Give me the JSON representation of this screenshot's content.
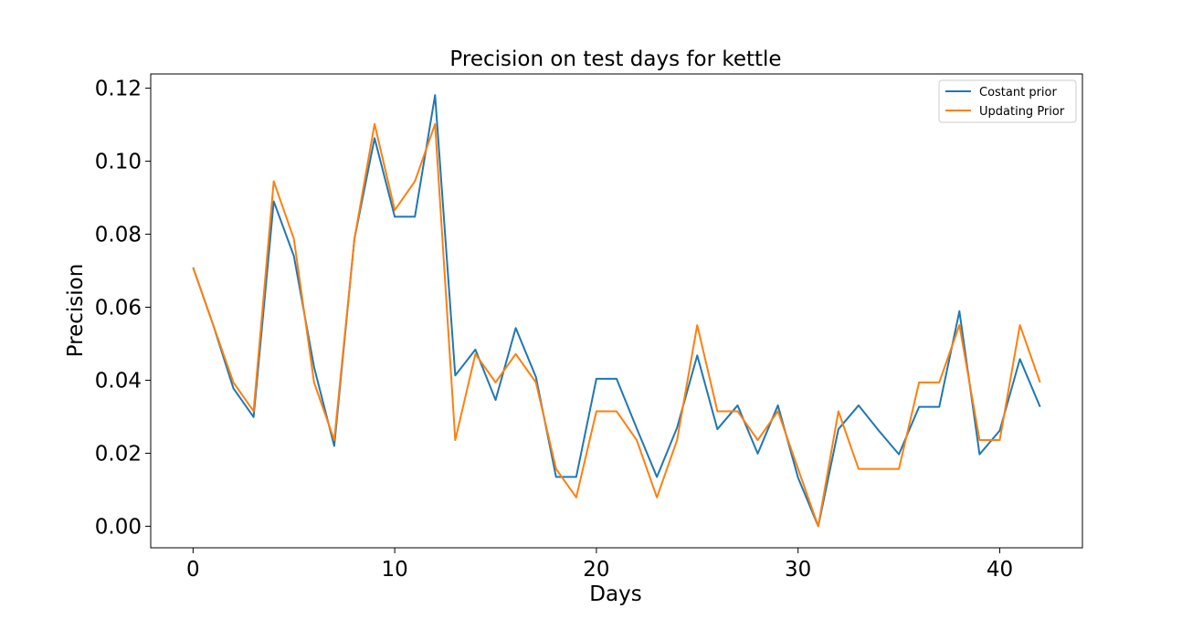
{
  "chart_data": {
    "type": "line",
    "title": "Precision on test days for kettle",
    "xlabel": "Days",
    "ylabel": "Precision",
    "xlim": [
      -2.1,
      44.1
    ],
    "ylim": [
      -0.0059,
      0.1239
    ],
    "xticks": [
      0,
      10,
      20,
      30,
      40
    ],
    "xtick_labels": [
      "0",
      "10",
      "20",
      "30",
      "40"
    ],
    "yticks": [
      0.0,
      0.02,
      0.04,
      0.06,
      0.08,
      0.1,
      0.12
    ],
    "ytick_labels": [
      "0.00",
      "0.02",
      "0.04",
      "0.06",
      "0.08",
      "0.10",
      "0.12"
    ],
    "grid": false,
    "legend_position": "top-right",
    "x": [
      0,
      1,
      2,
      3,
      4,
      5,
      6,
      7,
      8,
      9,
      10,
      11,
      12,
      13,
      14,
      15,
      16,
      17,
      18,
      19,
      20,
      21,
      22,
      23,
      24,
      25,
      26,
      27,
      28,
      29,
      30,
      31,
      32,
      33,
      34,
      35,
      36,
      37,
      38,
      39,
      40,
      41,
      42
    ],
    "series": [
      {
        "name": "Costant prior",
        "color": "#1f77b4",
        "values": [
          0.0709,
          0.0551,
          0.0378,
          0.0299,
          0.089,
          0.074,
          0.0436,
          0.022,
          0.0787,
          0.1063,
          0.0848,
          0.0848,
          0.1181,
          0.0413,
          0.0484,
          0.0346,
          0.0543,
          0.0409,
          0.0135,
          0.0135,
          0.0404,
          0.0404,
          0.0268,
          0.0135,
          0.027,
          0.0468,
          0.0266,
          0.0331,
          0.0199,
          0.0331,
          0.0133,
          0.0,
          0.0266,
          0.0331,
          0.0262,
          0.0197,
          0.0327,
          0.0327,
          0.0589,
          0.0197,
          0.0262,
          0.0458,
          0.0327
        ]
      },
      {
        "name": "Updating Prior",
        "color": "#ff7f0e",
        "values": [
          0.0709,
          0.0551,
          0.0394,
          0.0315,
          0.0945,
          0.0787,
          0.0394,
          0.0236,
          0.0787,
          0.1102,
          0.0866,
          0.0945,
          0.1102,
          0.0236,
          0.0472,
          0.0394,
          0.0472,
          0.0394,
          0.0157,
          0.0079,
          0.0315,
          0.0315,
          0.0236,
          0.0079,
          0.0236,
          0.0551,
          0.0315,
          0.0315,
          0.0236,
          0.0315,
          0.0157,
          0.0,
          0.0315,
          0.0157,
          0.0157,
          0.0157,
          0.0394,
          0.0394,
          0.0551,
          0.0236,
          0.0236,
          0.0551,
          0.0394
        ]
      }
    ]
  }
}
